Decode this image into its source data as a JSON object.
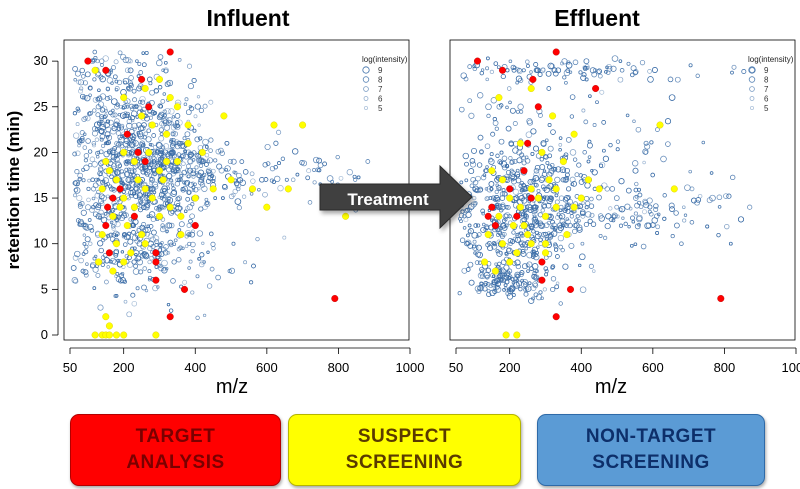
{
  "chart_data": [
    {
      "type": "scatter",
      "title": "Influent",
      "xlabel": "m/z",
      "ylabel": "retention time (min)",
      "xlim": [
        50,
        1000
      ],
      "ylim": [
        0,
        31
      ],
      "xticks": [
        "50",
        "200",
        "400",
        "600",
        "800",
        "1000"
      ],
      "yticks": [
        "0",
        "5",
        "10",
        "15",
        "20",
        "25",
        "30"
      ],
      "legend_title": "log(intensity)",
      "legend_labels": [
        "9",
        "8",
        "7",
        "6",
        "5"
      ],
      "series": [
        {
          "name": "Target analysis",
          "color": "#ff0000",
          "points": [
            [
              100,
              30
            ],
            [
              150,
              29
            ],
            [
              250,
              28
            ],
            [
              330,
              31
            ],
            [
              270,
              25
            ],
            [
              210,
              22
            ],
            [
              240,
              20
            ],
            [
              260,
              19
            ],
            [
              170,
              15
            ],
            [
              155,
              14
            ],
            [
              150,
              12
            ],
            [
              190,
              16
            ],
            [
              230,
              13
            ],
            [
              290,
              9
            ],
            [
              290,
              8
            ],
            [
              290,
              6
            ],
            [
              370,
              5
            ],
            [
              330,
              2
            ],
            [
              790,
              4
            ],
            [
              400,
              12
            ],
            [
              160,
              9
            ]
          ]
        },
        {
          "name": "Suspect screening",
          "color": "#ffff00",
          "points": [
            [
              120,
              29
            ],
            [
              200,
              26
            ],
            [
              300,
              28
            ],
            [
              350,
              25
            ],
            [
              250,
              24
            ],
            [
              280,
              23
            ],
            [
              320,
              22
            ],
            [
              380,
              21
            ],
            [
              200,
              20
            ],
            [
              230,
              19
            ],
            [
              300,
              18
            ],
            [
              350,
              19
            ],
            [
              160,
              18
            ],
            [
              180,
              17
            ],
            [
              260,
              16
            ],
            [
              310,
              17
            ],
            [
              200,
              15
            ],
            [
              230,
              14
            ],
            [
              280,
              15
            ],
            [
              330,
              14
            ],
            [
              170,
              13
            ],
            [
              210,
              12
            ],
            [
              250,
              11
            ],
            [
              300,
              13
            ],
            [
              140,
              11
            ],
            [
              180,
              10
            ],
            [
              220,
              9
            ],
            [
              260,
              10
            ],
            [
              360,
              11
            ],
            [
              400,
              15
            ],
            [
              450,
              16
            ],
            [
              420,
              20
            ],
            [
              130,
              8
            ],
            [
              170,
              7
            ],
            [
              200,
              8
            ],
            [
              140,
              16
            ],
            [
              150,
              19
            ],
            [
              330,
              26
            ],
            [
              380,
              23
            ],
            [
              620,
              23
            ],
            [
              700,
              23
            ],
            [
              500,
              17
            ],
            [
              560,
              16
            ],
            [
              600,
              14
            ],
            [
              660,
              16
            ],
            [
              150,
              2
            ],
            [
              160,
              1
            ],
            [
              120,
              0
            ],
            [
              140,
              0
            ],
            [
              150,
              0
            ],
            [
              160,
              0
            ],
            [
              180,
              0
            ],
            [
              200,
              0
            ],
            [
              290,
              0
            ],
            [
              820,
              13
            ],
            [
              480,
              24
            ],
            [
              260,
              27
            ],
            [
              360,
              13
            ],
            [
              240,
              17
            ],
            [
              190,
              14
            ],
            [
              270,
              20
            ],
            [
              320,
              19
            ]
          ]
        }
      ],
      "background_series": {
        "name": "Non-target screening",
        "color": "#3c6ea8",
        "count": 2300
      }
    },
    {
      "type": "scatter",
      "title": "Effluent",
      "xlabel": "m/z",
      "ylabel": "",
      "xlim": [
        50,
        1000
      ],
      "ylim": [
        0,
        31
      ],
      "xticks": [
        "50",
        "200",
        "400",
        "600",
        "800",
        "1000"
      ],
      "yticks": [],
      "legend_title": "log(intensity)",
      "legend_labels": [
        "9",
        "8",
        "7",
        "6",
        "5"
      ],
      "series": [
        {
          "name": "Target analysis",
          "color": "#ff0000",
          "points": [
            [
              110,
              30
            ],
            [
              180,
              29
            ],
            [
              265,
              28
            ],
            [
              330,
              31
            ],
            [
              280,
              25
            ],
            [
              250,
              21
            ],
            [
              240,
              18
            ],
            [
              150,
              14
            ],
            [
              140,
              13
            ],
            [
              160,
              12
            ],
            [
              200,
              16
            ],
            [
              290,
              8
            ],
            [
              290,
              6
            ],
            [
              370,
              5
            ],
            [
              330,
              2
            ],
            [
              790,
              4
            ],
            [
              440,
              27
            ],
            [
              260,
              15
            ],
            [
              220,
              13
            ]
          ]
        },
        {
          "name": "Suspect screening",
          "color": "#ffff00",
          "points": [
            [
              170,
              26
            ],
            [
              260,
              27
            ],
            [
              320,
              24
            ],
            [
              380,
              22
            ],
            [
              230,
              21
            ],
            [
              290,
              20
            ],
            [
              350,
              19
            ],
            [
              150,
              18
            ],
            [
              180,
              17
            ],
            [
              260,
              16
            ],
            [
              310,
              17
            ],
            [
              200,
              15
            ],
            [
              230,
              14
            ],
            [
              280,
              15
            ],
            [
              330,
              14
            ],
            [
              170,
              13
            ],
            [
              210,
              12
            ],
            [
              250,
              11
            ],
            [
              300,
              13
            ],
            [
              140,
              11
            ],
            [
              180,
              10
            ],
            [
              220,
              9
            ],
            [
              260,
              10
            ],
            [
              360,
              11
            ],
            [
              400,
              15
            ],
            [
              450,
              16
            ],
            [
              130,
              8
            ],
            [
              160,
              7
            ],
            [
              200,
              8
            ],
            [
              420,
              17
            ],
            [
              380,
              14
            ],
            [
              300,
              10
            ],
            [
              240,
              12
            ],
            [
              330,
              16
            ],
            [
              620,
              23
            ],
            [
              660,
              16
            ],
            [
              190,
              0
            ],
            [
              220,
              0
            ],
            [
              300,
              9
            ]
          ]
        }
      ],
      "background_series": {
        "name": "Non-target screening",
        "color": "#3c6ea8",
        "count": 1900
      }
    }
  ],
  "arrow": {
    "label": "Treatment"
  },
  "legend_buttons": [
    {
      "label": "TARGET\nANALYSIS",
      "color": "#ff0000"
    },
    {
      "label": "SUSPECT\nSCREENING",
      "color": "#ffff00"
    },
    {
      "label": "NON-TARGET\nSCREENING",
      "color": "#5b9bd5"
    }
  ]
}
